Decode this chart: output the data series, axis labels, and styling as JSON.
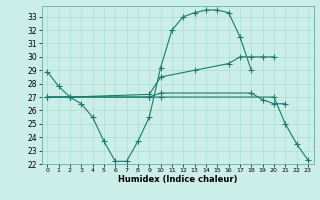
{
  "title": "",
  "xlabel": "Humidex (Indice chaleur)",
  "bg_color": "#cceee8",
  "grid_color": "#aaddcc",
  "line_color": "#1a7a6e",
  "xlim": [
    -0.5,
    23.5
  ],
  "ylim": [
    22,
    33.8
  ],
  "yticks": [
    22,
    23,
    24,
    25,
    26,
    27,
    28,
    29,
    30,
    31,
    32,
    33
  ],
  "xticks": [
    0,
    1,
    2,
    3,
    4,
    5,
    6,
    7,
    8,
    9,
    10,
    11,
    12,
    13,
    14,
    15,
    16,
    17,
    18,
    19,
    20,
    21,
    22,
    23
  ],
  "line1_x": [
    0,
    1,
    2,
    3,
    4,
    5,
    6,
    7,
    8,
    9,
    10,
    11,
    12,
    13,
    14,
    15,
    16,
    17,
    18
  ],
  "line1_y": [
    28.9,
    27.8,
    27.0,
    26.5,
    25.5,
    23.7,
    22.2,
    22.2,
    23.7,
    25.5,
    29.2,
    32.0,
    33.0,
    33.3,
    33.5,
    33.5,
    33.3,
    31.5,
    29.0
  ],
  "line2_x": [
    0,
    2,
    9,
    10,
    13,
    16,
    17,
    18,
    19,
    20
  ],
  "line2_y": [
    27.0,
    27.0,
    27.2,
    28.5,
    29.0,
    29.5,
    30.0,
    30.0,
    30.0,
    30.0
  ],
  "line3_x": [
    0,
    2,
    9,
    10,
    18,
    19,
    20,
    21
  ],
  "line3_y": [
    27.0,
    27.0,
    27.0,
    27.3,
    27.3,
    26.8,
    26.5,
    26.5
  ],
  "line4_x": [
    0,
    2,
    9,
    10,
    20,
    21,
    22,
    23
  ],
  "line4_y": [
    27.0,
    27.0,
    27.0,
    27.0,
    27.0,
    25.0,
    23.5,
    22.3
  ]
}
